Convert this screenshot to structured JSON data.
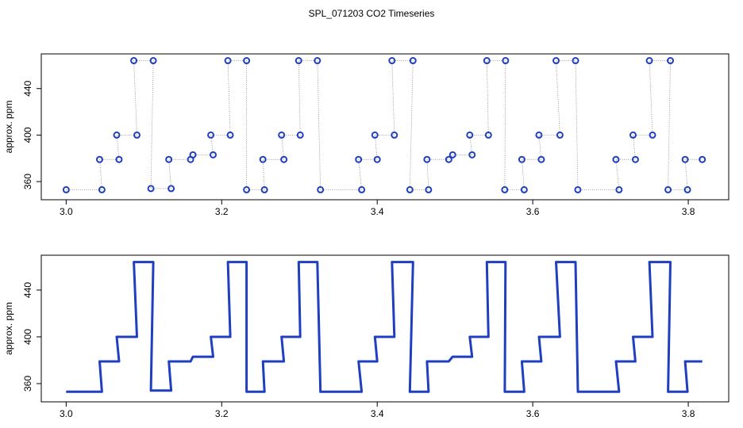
{
  "title": "SPL_071203  CO2 Timeseries",
  "chart_data": [
    {
      "type": "scatter",
      "ylabel": "approx. ppm",
      "color": "#1f3fbf",
      "x": [
        3.0,
        3.046,
        3.043,
        3.068,
        3.065,
        3.091,
        3.087,
        3.112,
        3.109,
        3.135,
        3.132,
        3.16,
        3.163,
        3.189,
        3.186,
        3.211,
        3.208,
        3.232,
        3.232,
        3.255,
        3.253,
        3.28,
        3.277,
        3.301,
        3.299,
        3.323,
        3.327,
        3.38,
        3.376,
        3.4,
        3.397,
        3.422,
        3.419,
        3.446,
        3.442,
        3.466,
        3.464,
        3.492,
        3.497,
        3.522,
        3.519,
        3.543,
        3.541,
        3.565,
        3.564,
        3.589,
        3.586,
        3.611,
        3.608,
        3.635,
        3.63,
        3.655,
        3.658,
        3.711,
        3.707,
        3.732,
        3.729,
        3.754,
        3.75,
        3.777,
        3.774,
        3.799,
        3.796,
        3.818
      ],
      "values": [
        353,
        353,
        379,
        379,
        400,
        400,
        464,
        464,
        354,
        354,
        379,
        379,
        383,
        383,
        400,
        400,
        464,
        464,
        353,
        353,
        379,
        379,
        400,
        400,
        464,
        464,
        353,
        353,
        379,
        379,
        400,
        400,
        464,
        464,
        353,
        353,
        379,
        379,
        383,
        383,
        400,
        400,
        464,
        464,
        353,
        353,
        379,
        379,
        400,
        400,
        464,
        464,
        353,
        353,
        379,
        379,
        400,
        400,
        464,
        464,
        353,
        353,
        379,
        379
      ],
      "xlim": [
        2.968,
        3.852
      ],
      "ylim": [
        344.4,
        469.8
      ],
      "xticks": [
        {
          "value": 3,
          "label": "3.0"
        },
        3.2,
        3.4,
        3.6,
        3.8
      ],
      "yticks": [
        360,
        400,
        440
      ]
    },
    {
      "type": "line",
      "ylabel": "approx. ppm",
      "color": "#1f3fbf",
      "x": [
        3.0,
        3.046,
        3.043,
        3.068,
        3.065,
        3.091,
        3.087,
        3.112,
        3.109,
        3.135,
        3.132,
        3.16,
        3.163,
        3.189,
        3.186,
        3.211,
        3.208,
        3.232,
        3.232,
        3.255,
        3.253,
        3.28,
        3.277,
        3.301,
        3.299,
        3.323,
        3.327,
        3.38,
        3.376,
        3.4,
        3.397,
        3.422,
        3.419,
        3.446,
        3.442,
        3.466,
        3.464,
        3.492,
        3.497,
        3.522,
        3.519,
        3.543,
        3.541,
        3.565,
        3.564,
        3.589,
        3.586,
        3.611,
        3.608,
        3.635,
        3.63,
        3.655,
        3.658,
        3.711,
        3.707,
        3.732,
        3.729,
        3.754,
        3.75,
        3.777,
        3.774,
        3.799,
        3.796,
        3.818
      ],
      "values": [
        353,
        353,
        379,
        379,
        400,
        400,
        464,
        464,
        354,
        354,
        379,
        379,
        383,
        383,
        400,
        400,
        464,
        464,
        353,
        353,
        379,
        379,
        400,
        400,
        464,
        464,
        353,
        353,
        379,
        379,
        400,
        400,
        464,
        464,
        353,
        353,
        379,
        379,
        383,
        383,
        400,
        400,
        464,
        464,
        353,
        353,
        379,
        379,
        400,
        400,
        464,
        464,
        353,
        353,
        379,
        379,
        400,
        400,
        464,
        464,
        353,
        353,
        379,
        379
      ],
      "xlim": [
        2.968,
        3.852
      ],
      "ylim": [
        344.4,
        469.8
      ],
      "xticks": [
        {
          "value": 3,
          "label": "3.0"
        },
        3.2,
        3.4,
        3.6,
        3.8
      ],
      "yticks": [
        360,
        400,
        440
      ]
    }
  ]
}
